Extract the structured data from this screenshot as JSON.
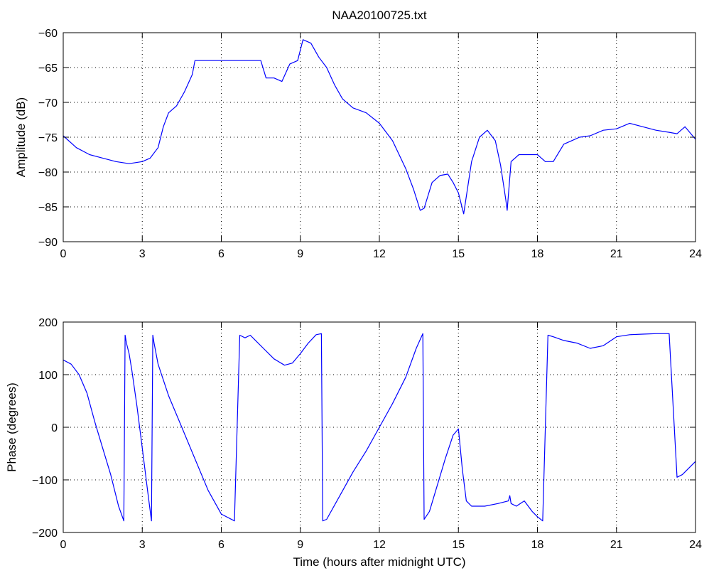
{
  "figure": {
    "title": "NAA20100725.txt"
  },
  "chart_data": [
    {
      "type": "line",
      "title": "NAA20100725.txt",
      "xlabel": "",
      "ylabel": "Amplitude (dB)",
      "xlim": [
        0,
        24
      ],
      "ylim": [
        -90,
        -60
      ],
      "xticks": [
        0,
        3,
        6,
        9,
        12,
        15,
        18,
        21,
        24
      ],
      "yticks": [
        -90,
        -85,
        -80,
        -75,
        -70,
        -65,
        -60
      ],
      "grid": true,
      "line_color": "#0000ff",
      "series": [
        {
          "x": [
            0,
            0.5,
            1,
            1.5,
            2,
            2.5,
            3,
            3.3,
            3.6,
            3.8,
            4.0,
            4.3,
            4.6,
            4.9,
            5.0,
            5.5,
            6,
            6.5,
            7,
            7.5,
            7.7,
            8.0,
            8.3,
            8.6,
            8.9,
            9.1,
            9.4,
            9.7,
            10.0,
            10.3,
            10.6,
            11.0,
            11.5,
            12.0,
            12.5,
            13.0,
            13.3,
            13.55,
            13.7,
            14.0,
            14.3,
            14.6,
            14.8,
            15.0,
            15.2,
            15.3,
            15.5,
            15.8,
            16.1,
            16.4,
            16.6,
            16.8,
            16.85,
            17.0,
            17.3,
            17.7,
            18.0,
            18.3,
            18.6,
            19.0,
            19.3,
            19.6,
            20.0,
            20.5,
            21.0,
            21.5,
            22.0,
            22.5,
            23.0,
            23.3,
            23.6,
            24.0
          ],
          "y": [
            -74.8,
            -76.5,
            -77.5,
            -78,
            -78.5,
            -78.8,
            -78.5,
            -78,
            -76.5,
            -73.5,
            -71.5,
            -70.5,
            -68.5,
            -66,
            -64,
            -64,
            -64,
            -64,
            -64,
            -64,
            -66.5,
            -66.5,
            -67,
            -64.5,
            -64,
            -61,
            -61.5,
            -63.5,
            -65,
            -67.5,
            -69.5,
            -70.8,
            -71.5,
            -73,
            -75.5,
            -79.5,
            -82.5,
            -85.5,
            -85.2,
            -81.5,
            -80.5,
            -80.3,
            -81.5,
            -83,
            -86,
            -83.5,
            -78.5,
            -75,
            -74,
            -75.5,
            -79,
            -84,
            -85.5,
            -78.5,
            -77.5,
            -77.5,
            -77.5,
            -78.5,
            -78.5,
            -76,
            -75.5,
            -75,
            -74.8,
            -74,
            -73.8,
            -73,
            -73.5,
            -74,
            -74.3,
            -74.5,
            -73.5,
            -75.3
          ]
        }
      ]
    },
    {
      "type": "line",
      "title": "",
      "xlabel": "Time (hours after midnight UTC)",
      "ylabel": "Phase (degrees)",
      "xlim": [
        0,
        24
      ],
      "ylim": [
        -200,
        200
      ],
      "xticks": [
        0,
        3,
        6,
        9,
        12,
        15,
        18,
        21,
        24
      ],
      "yticks": [
        -200,
        -100,
        0,
        100,
        200
      ],
      "grid": true,
      "line_color": "#0000ff",
      "series": [
        {
          "x": [
            0,
            0.3,
            0.6,
            0.9,
            1.2,
            1.5,
            1.8,
            2.1,
            2.3,
            2.35,
            2.4,
            2.5,
            2.6,
            2.8,
            3.0,
            3.2,
            3.35,
            3.4,
            3.45,
            3.6,
            4.0,
            4.5,
            5.0,
            5.5,
            6.0,
            6.5,
            6.7,
            6.9,
            7.1,
            7.3,
            7.6,
            8.0,
            8.4,
            8.7,
            9.0,
            9.3,
            9.6,
            9.8,
            9.85,
            10.0,
            10.5,
            11.0,
            11.5,
            12.0,
            12.5,
            13.0,
            13.4,
            13.65,
            13.7,
            13.9,
            14.2,
            14.5,
            14.8,
            15.0,
            15.15,
            15.3,
            15.5,
            16.0,
            16.5,
            16.9,
            16.95,
            17.0,
            17.2,
            17.5,
            17.8,
            18.0,
            18.2,
            18.4,
            18.6,
            19.0,
            19.5,
            20.0,
            20.5,
            21.0,
            21.5,
            22.0,
            22.5,
            23.0,
            23.3,
            23.5,
            24.0
          ],
          "y": [
            128,
            120,
            100,
            65,
            10,
            -40,
            -90,
            -150,
            -178,
            175,
            160,
            140,
            110,
            40,
            -40,
            -120,
            -178,
            175,
            160,
            120,
            60,
            0,
            -60,
            -120,
            -165,
            -178,
            175,
            170,
            175,
            165,
            150,
            130,
            118,
            122,
            140,
            160,
            176,
            178,
            -178,
            -175,
            -130,
            -85,
            -45,
            0,
            45,
            95,
            150,
            178,
            -175,
            -160,
            -110,
            -60,
            -15,
            -3,
            -80,
            -140,
            -150,
            -150,
            -145,
            -140,
            -130,
            -145,
            -150,
            -140,
            -160,
            -170,
            -178,
            175,
            172,
            165,
            160,
            150,
            155,
            172,
            176,
            177,
            178,
            178,
            -95,
            -90,
            -65
          ]
        }
      ]
    }
  ]
}
